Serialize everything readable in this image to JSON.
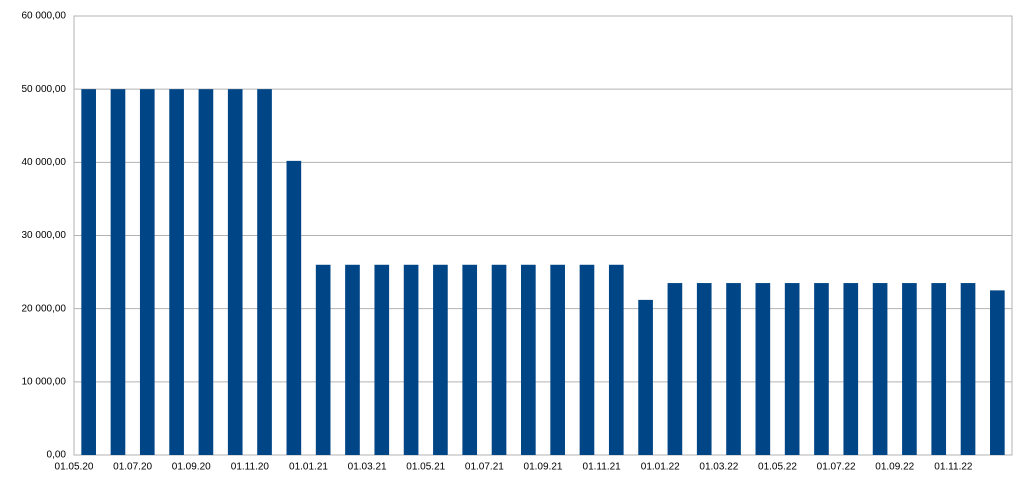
{
  "chart_data": {
    "type": "bar",
    "categories": [
      "01.05.20",
      null,
      "01.07.20",
      null,
      "01.09.20",
      null,
      "01.11.20",
      null,
      "01.01.21",
      null,
      "01.03.21",
      null,
      "01.05.21",
      null,
      "01.07.21",
      null,
      "01.09.21",
      null,
      "01.11.21",
      null,
      "01.01.22",
      null,
      "01.03.22",
      null,
      "01.05.22",
      null,
      "01.07.22",
      null,
      "01.09.22",
      null,
      "01.11.22",
      null
    ],
    "values": [
      50000,
      50000,
      50000,
      50000,
      50000,
      50000,
      50000,
      40200,
      26000,
      26000,
      26000,
      26000,
      26000,
      26000,
      26000,
      26000,
      26000,
      26000,
      26000,
      21200,
      23500,
      23500,
      23500,
      23500,
      23500,
      23500,
      23500,
      23500,
      23500,
      23500,
      23500,
      22500
    ],
    "color": "#004586",
    "ylim": [
      0,
      60000
    ],
    "yticks": [
      {
        "value": 0,
        "label": "0,00"
      },
      {
        "value": 10000,
        "label": "10 000,00"
      },
      {
        "value": 20000,
        "label": "20 000,00"
      },
      {
        "value": 30000,
        "label": "30 000,00"
      },
      {
        "value": 40000,
        "label": "40 000,00"
      },
      {
        "value": 50000,
        "label": "50 000,00"
      },
      {
        "value": 60000,
        "label": "60 000,00"
      }
    ],
    "grid": true
  }
}
